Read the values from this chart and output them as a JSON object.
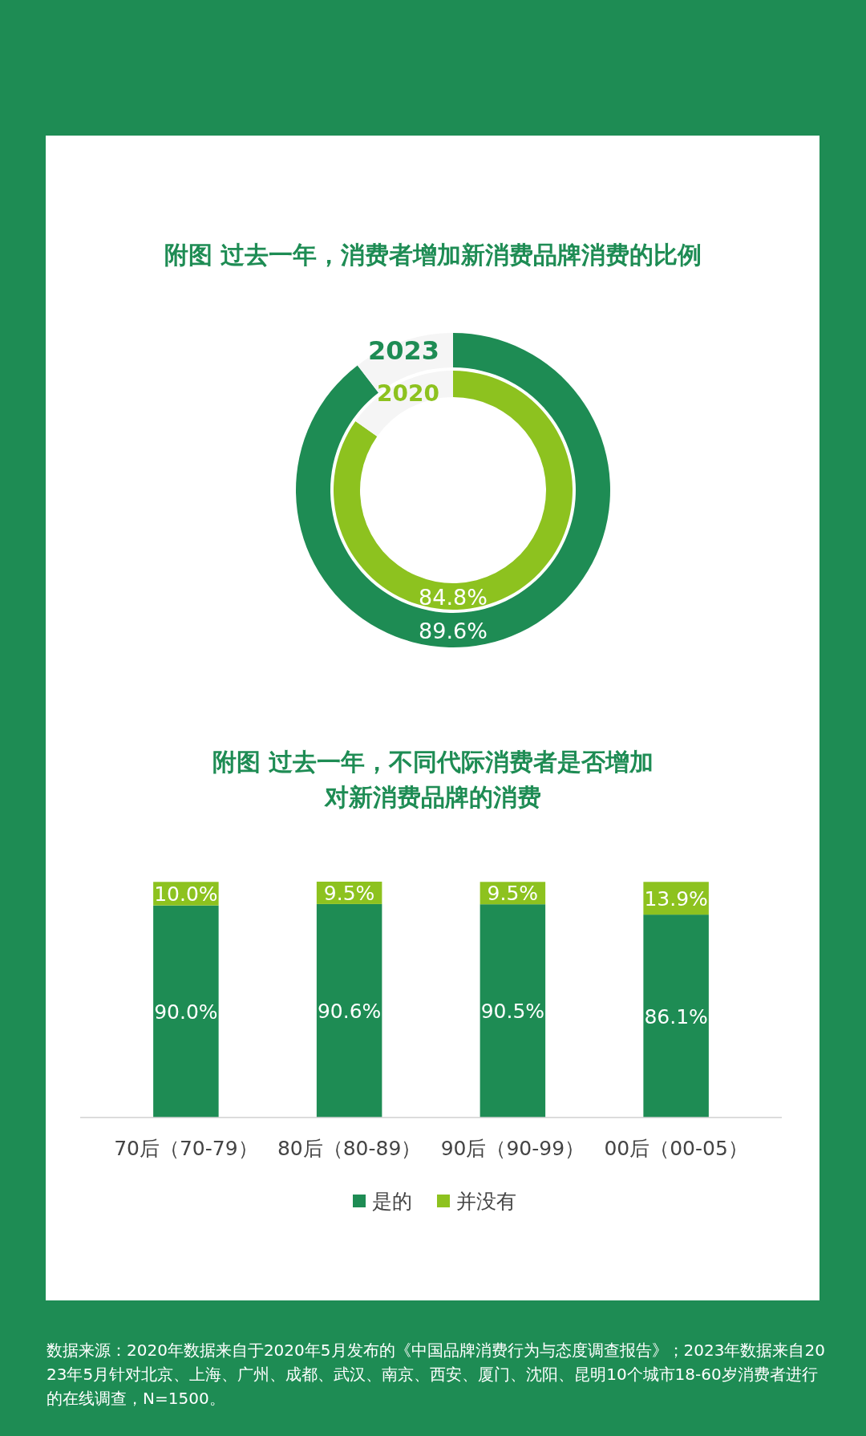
{
  "chart_data": [
    {
      "type": "donut",
      "title": "附图 过去一年，消费者增加新消费品牌消费的比例",
      "categories": [
        null,
        null
      ],
      "series": [
        {
          "name": "2023",
          "colors": [
            "#1e8c54",
            "#f5f5f5"
          ],
          "values": [
            89.6,
            10.4
          ],
          "value_labels": [
            "89.6%",
            null
          ]
        }
      ]
    },
    {
      "type": "donut",
      "categories": [
        null,
        null
      ],
      "series": [
        {
          "name": "2020",
          "colors": [
            "#8dc21f",
            "#f5f5f5"
          ],
          "values": [
            84.8,
            15.2
          ],
          "value_labels": [
            "84.8%",
            null
          ]
        }
      ]
    },
    {
      "type": "bar",
      "stacked": true,
      "title": "附图 过去一年，不同代际消费者是否增加对新消费品牌的消费",
      "categories": [
        "70后（70-79）",
        "80后（80-89）",
        "90后（90-99）",
        "00后（00-05）"
      ],
      "series": [
        {
          "name": "是的",
          "color": "#1e8c54",
          "values": [
            90.0,
            90.6,
            90.5,
            86.1
          ],
          "value_labels": [
            "90.0%",
            "90.6%",
            "90.5%",
            "86.1%"
          ]
        },
        {
          "name": "并没有",
          "color": "#8dc21f",
          "values": [
            10.0,
            9.5,
            9.5,
            13.9
          ],
          "value_labels": [
            "10.0%",
            "9.5%",
            "9.5%",
            "13.9%"
          ]
        }
      ],
      "legend": "bottom",
      "annotations": [
        "数据来源：2020年数据来自于2020年5月发布的《中国品牌消费行为与态度调查报告》；2023年数据来自2023年5月针对北京、上海、广州、成都、武汉、南京、西安、厦门、沈阳、昆明10个城市18-60岁消费者进行的在线调查，N=1500。"
      ]
    }
  ]
}
